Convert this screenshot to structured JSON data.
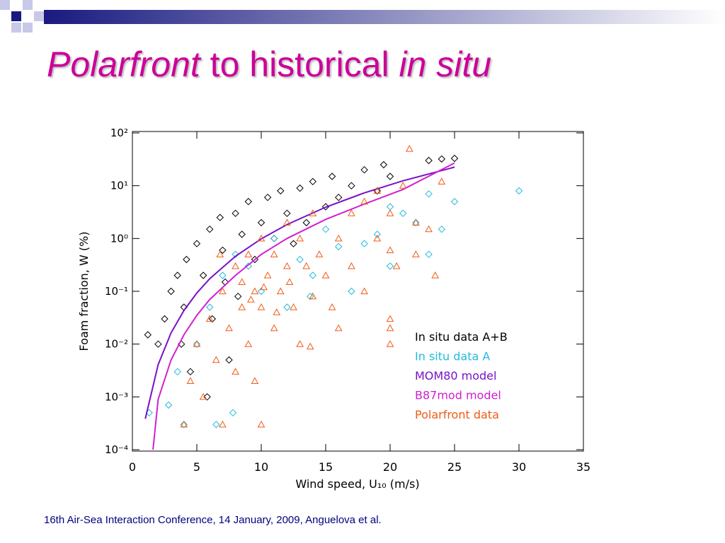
{
  "header": {
    "title_parts": [
      "Polarfront",
      " to historical ",
      "in situ"
    ]
  },
  "footer": "16th Air-Sea Interaction Conference, 14 January, 2009, Anguelova et al.",
  "chart_data": {
    "type": "scatter",
    "ylabel": "Foam fraction, W (%)",
    "xlabel": "Wind speed, U₁₀ (m/s)",
    "xlim": [
      0,
      35
    ],
    "xticks": [
      0,
      5,
      10,
      15,
      20,
      25,
      30,
      35
    ],
    "ylim": [
      0.0001,
      100
    ],
    "ylog": true,
    "yticks": [
      {
        "value": 0.0001,
        "label": "10⁻⁴"
      },
      {
        "value": 0.001,
        "label": "10⁻³"
      },
      {
        "value": 0.01,
        "label": "10⁻²"
      },
      {
        "value": 0.1,
        "label": "10⁻¹"
      },
      {
        "value": 1,
        "label": "10⁰"
      },
      {
        "value": 10,
        "label": "10¹"
      },
      {
        "value": 100,
        "label": "10²"
      }
    ],
    "legend": "lower right",
    "series": [
      {
        "name": "In situ data A+B",
        "color": "#000000",
        "marker": "diamond",
        "x": [
          1.2,
          2,
          2.5,
          3,
          3.5,
          4,
          4.2,
          4.5,
          5,
          5.5,
          6,
          6.2,
          6.8,
          7,
          7.5,
          8,
          8.5,
          9,
          9.5,
          10,
          10.5,
          11,
          11.5,
          12,
          12.5,
          13,
          13.5,
          14,
          15,
          15.5,
          16,
          17,
          18,
          19,
          19.5,
          20,
          23,
          24,
          25,
          7.2,
          8.2,
          3.8,
          5.8
        ],
        "values": [
          0.015,
          0.01,
          0.03,
          0.1,
          0.2,
          0.05,
          0.4,
          0.003,
          0.8,
          0.2,
          1.5,
          0.03,
          2.5,
          0.6,
          0.005,
          3,
          1.2,
          5,
          0.4,
          2,
          6,
          1,
          8,
          3,
          0.8,
          9,
          2,
          12,
          4,
          15,
          6,
          10,
          20,
          8,
          25,
          15,
          30,
          32,
          33,
          0.15,
          0.08,
          0.01,
          0.001
        ]
      },
      {
        "name": "In situ data A",
        "color": "#22bbdd",
        "marker": "diamond",
        "x": [
          1.3,
          2.8,
          3.5,
          4,
          5,
          6,
          6.5,
          7,
          8,
          9,
          10,
          11,
          12,
          13,
          14,
          15,
          16,
          17,
          18,
          19,
          20,
          20,
          21,
          22,
          23,
          23,
          24,
          25,
          30,
          7.8,
          13.8
        ],
        "values": [
          0.0005,
          0.0007,
          0.003,
          0.0003,
          0.01,
          0.05,
          0.0003,
          0.2,
          0.5,
          0.3,
          0.1,
          1,
          0.05,
          0.4,
          0.2,
          1.5,
          0.7,
          0.1,
          0.8,
          1.2,
          0.3,
          4,
          3,
          2,
          7,
          0.5,
          1.5,
          5,
          8,
          0.0005,
          0.08
        ]
      },
      {
        "name": "MOM80 model",
        "color": "#7a10c8",
        "marker": "line",
        "x": [
          1,
          2,
          3,
          4,
          5,
          6,
          8,
          10,
          12,
          15,
          18,
          21,
          25
        ],
        "values": [
          0.000384,
          0.00408,
          0.0163,
          0.0434,
          0.0929,
          0.173,
          0.461,
          0.987,
          1.84,
          3.93,
          7.32,
          12.4,
          22.5
        ]
      },
      {
        "name": "B87mod model",
        "color": "#d020d0",
        "marker": "line",
        "x": [
          1.6,
          2,
          3,
          4,
          5,
          6,
          8,
          10,
          12,
          15,
          18,
          21,
          25
        ],
        "values": [
          0.0001,
          0.0009,
          0.005,
          0.015,
          0.035,
          0.07,
          0.2,
          0.5,
          1,
          2.3,
          4.5,
          8.5,
          27
        ]
      },
      {
        "name": "Polarfront data",
        "color": "#f05a14",
        "marker": "triangle",
        "x": [
          4,
          4.5,
          5,
          5.5,
          6,
          6.5,
          7,
          7,
          7.5,
          8,
          8,
          8.5,
          9,
          9,
          9.5,
          9.5,
          10,
          10,
          10,
          10.5,
          11,
          11,
          11.5,
          12,
          12,
          12.5,
          13,
          13,
          13.5,
          14,
          14,
          14.5,
          15,
          15.5,
          16,
          16,
          17,
          17,
          18,
          18,
          19,
          19,
          20,
          20,
          20,
          20,
          20.5,
          21,
          21.5,
          22,
          22,
          23,
          23.5,
          24,
          20,
          8.5,
          9.2,
          10.2,
          11.2,
          12.2,
          6.8,
          13.8
        ],
        "values": [
          0.0003,
          0.002,
          0.01,
          0.001,
          0.03,
          0.005,
          0.1,
          0.0003,
          0.02,
          0.3,
          0.003,
          0.05,
          0.5,
          0.01,
          0.1,
          0.002,
          1,
          0.05,
          0.0003,
          0.2,
          0.5,
          0.02,
          0.1,
          2,
          0.3,
          0.05,
          1,
          0.01,
          0.3,
          3,
          0.08,
          0.5,
          0.2,
          0.05,
          1,
          0.02,
          3,
          0.3,
          5,
          0.1,
          8,
          1,
          3,
          0.02,
          0.03,
          0.01,
          0.3,
          10,
          50,
          2,
          0.5,
          1.5,
          0.2,
          12,
          0.6,
          0.15,
          0.07,
          0.12,
          0.04,
          0.15,
          0.5,
          0.009
        ]
      }
    ]
  }
}
